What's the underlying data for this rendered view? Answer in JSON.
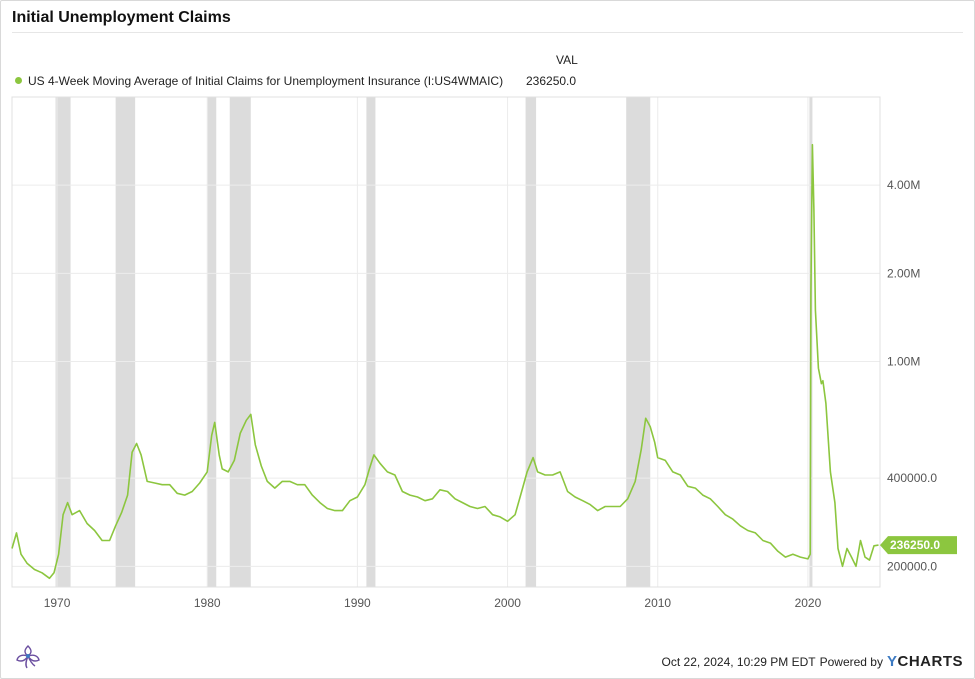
{
  "title": "Initial Unemployment Claims",
  "legend": {
    "header": "VAL",
    "series_name": "US 4-Week Moving Average of Initial Claims for Unemployment Insurance (I:US4WMAIC)",
    "series_value": "236250.0"
  },
  "footer": {
    "timestamp": "Oct 22, 2024, 10:29 PM EDT",
    "powered_by": "Powered by",
    "brand_y": "Y",
    "brand_rest": "CHARTS"
  },
  "colors": {
    "series": "#8cc63f",
    "recession": "#dcdcdc",
    "grid": "#ececec"
  },
  "chart_data": {
    "type": "line",
    "title": "Initial Unemployment Claims",
    "xlabel": "",
    "ylabel": "",
    "y_scale": "log",
    "x_range": [
      1967,
      2024.8
    ],
    "y_range": [
      170000,
      8000000
    ],
    "x_ticks": [
      {
        "value": 1970,
        "label": "1970"
      },
      {
        "value": 1980,
        "label": "1980"
      },
      {
        "value": 1990,
        "label": "1990"
      },
      {
        "value": 2000,
        "label": "2000"
      },
      {
        "value": 2010,
        "label": "2010"
      },
      {
        "value": 2020,
        "label": "2020"
      }
    ],
    "y_ticks": [
      {
        "value": 200000,
        "label": "200000.0"
      },
      {
        "value": 400000,
        "label": "400000.0"
      },
      {
        "value": 1000000,
        "label": "1.00M"
      },
      {
        "value": 2000000,
        "label": "2.00M"
      },
      {
        "value": 4000000,
        "label": "4.00M"
      }
    ],
    "grid": true,
    "legend_position": "top-left",
    "last_value_label": "236250.0",
    "last_value": 236250,
    "recessions": [
      [
        1969.9,
        1970.9
      ],
      [
        1973.9,
        1975.2
      ],
      [
        1980.0,
        1980.6
      ],
      [
        1981.5,
        1982.9
      ],
      [
        1990.6,
        1991.2
      ],
      [
        2001.2,
        2001.9
      ],
      [
        2007.9,
        2009.5
      ],
      [
        2020.1,
        2020.3
      ]
    ],
    "series": [
      {
        "name": "US 4-Week Moving Average of Initial Claims for Unemployment Insurance (I:US4WMAIC)",
        "points": [
          [
            1967.0,
            230000
          ],
          [
            1967.3,
            260000
          ],
          [
            1967.6,
            220000
          ],
          [
            1968.0,
            205000
          ],
          [
            1968.5,
            195000
          ],
          [
            1969.0,
            190000
          ],
          [
            1969.5,
            182000
          ],
          [
            1969.8,
            190000
          ],
          [
            1970.1,
            220000
          ],
          [
            1970.4,
            300000
          ],
          [
            1970.7,
            330000
          ],
          [
            1971.0,
            300000
          ],
          [
            1971.5,
            310000
          ],
          [
            1972.0,
            280000
          ],
          [
            1972.5,
            265000
          ],
          [
            1973.0,
            245000
          ],
          [
            1973.5,
            245000
          ],
          [
            1973.9,
            275000
          ],
          [
            1974.3,
            305000
          ],
          [
            1974.7,
            350000
          ],
          [
            1975.0,
            490000
          ],
          [
            1975.3,
            525000
          ],
          [
            1975.6,
            480000
          ],
          [
            1976.0,
            390000
          ],
          [
            1976.5,
            385000
          ],
          [
            1977.0,
            380000
          ],
          [
            1977.5,
            380000
          ],
          [
            1978.0,
            355000
          ],
          [
            1978.5,
            350000
          ],
          [
            1979.0,
            360000
          ],
          [
            1979.5,
            385000
          ],
          [
            1980.0,
            420000
          ],
          [
            1980.3,
            560000
          ],
          [
            1980.5,
            620000
          ],
          [
            1980.8,
            480000
          ],
          [
            1981.0,
            430000
          ],
          [
            1981.4,
            420000
          ],
          [
            1981.8,
            460000
          ],
          [
            1982.2,
            570000
          ],
          [
            1982.6,
            630000
          ],
          [
            1982.9,
            660000
          ],
          [
            1983.2,
            520000
          ],
          [
            1983.6,
            440000
          ],
          [
            1984.0,
            390000
          ],
          [
            1984.5,
            370000
          ],
          [
            1985.0,
            390000
          ],
          [
            1985.5,
            390000
          ],
          [
            1986.0,
            380000
          ],
          [
            1986.5,
            380000
          ],
          [
            1987.0,
            350000
          ],
          [
            1987.5,
            330000
          ],
          [
            1988.0,
            315000
          ],
          [
            1988.5,
            310000
          ],
          [
            1989.0,
            310000
          ],
          [
            1989.5,
            335000
          ],
          [
            1990.0,
            345000
          ],
          [
            1990.5,
            380000
          ],
          [
            1990.8,
            430000
          ],
          [
            1991.1,
            480000
          ],
          [
            1991.5,
            450000
          ],
          [
            1992.0,
            420000
          ],
          [
            1992.5,
            410000
          ],
          [
            1993.0,
            360000
          ],
          [
            1993.5,
            350000
          ],
          [
            1994.0,
            345000
          ],
          [
            1994.5,
            335000
          ],
          [
            1995.0,
            340000
          ],
          [
            1995.5,
            365000
          ],
          [
            1996.0,
            360000
          ],
          [
            1996.5,
            340000
          ],
          [
            1997.0,
            330000
          ],
          [
            1997.5,
            320000
          ],
          [
            1998.0,
            315000
          ],
          [
            1998.5,
            320000
          ],
          [
            1999.0,
            300000
          ],
          [
            1999.5,
            295000
          ],
          [
            2000.0,
            285000
          ],
          [
            2000.5,
            300000
          ],
          [
            2001.0,
            370000
          ],
          [
            2001.3,
            420000
          ],
          [
            2001.7,
            470000
          ],
          [
            2002.0,
            420000
          ],
          [
            2002.5,
            410000
          ],
          [
            2003.0,
            410000
          ],
          [
            2003.5,
            420000
          ],
          [
            2004.0,
            360000
          ],
          [
            2004.5,
            345000
          ],
          [
            2005.0,
            335000
          ],
          [
            2005.5,
            325000
          ],
          [
            2006.0,
            310000
          ],
          [
            2006.5,
            320000
          ],
          [
            2007.0,
            320000
          ],
          [
            2007.5,
            320000
          ],
          [
            2008.0,
            340000
          ],
          [
            2008.5,
            390000
          ],
          [
            2008.9,
            500000
          ],
          [
            2009.2,
            640000
          ],
          [
            2009.5,
            600000
          ],
          [
            2009.8,
            530000
          ],
          [
            2010.0,
            470000
          ],
          [
            2010.5,
            460000
          ],
          [
            2011.0,
            420000
          ],
          [
            2011.5,
            410000
          ],
          [
            2012.0,
            375000
          ],
          [
            2012.5,
            370000
          ],
          [
            2013.0,
            350000
          ],
          [
            2013.5,
            340000
          ],
          [
            2014.0,
            320000
          ],
          [
            2014.5,
            300000
          ],
          [
            2015.0,
            290000
          ],
          [
            2015.5,
            275000
          ],
          [
            2016.0,
            265000
          ],
          [
            2016.5,
            260000
          ],
          [
            2017.0,
            245000
          ],
          [
            2017.5,
            240000
          ],
          [
            2018.0,
            225000
          ],
          [
            2018.5,
            215000
          ],
          [
            2019.0,
            220000
          ],
          [
            2019.5,
            215000
          ],
          [
            2020.0,
            212000
          ],
          [
            2020.15,
            220000
          ],
          [
            2020.2,
            1700000
          ],
          [
            2020.3,
            5500000
          ],
          [
            2020.4,
            3300000
          ],
          [
            2020.5,
            1500000
          ],
          [
            2020.7,
            950000
          ],
          [
            2020.9,
            840000
          ],
          [
            2021.0,
            860000
          ],
          [
            2021.2,
            720000
          ],
          [
            2021.5,
            420000
          ],
          [
            2021.8,
            330000
          ],
          [
            2022.0,
            230000
          ],
          [
            2022.3,
            200000
          ],
          [
            2022.6,
            230000
          ],
          [
            2022.9,
            215000
          ],
          [
            2023.2,
            200000
          ],
          [
            2023.5,
            245000
          ],
          [
            2023.8,
            215000
          ],
          [
            2024.1,
            210000
          ],
          [
            2024.4,
            235000
          ],
          [
            2024.7,
            236250
          ]
        ]
      }
    ]
  }
}
